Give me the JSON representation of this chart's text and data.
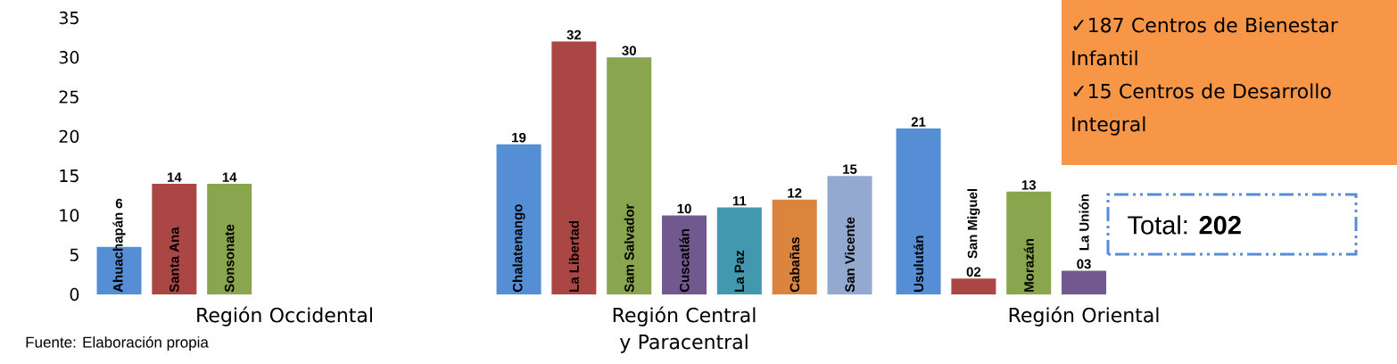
{
  "chart_data": {
    "type": "bar",
    "categories": [
      "Región Occidental",
      "Región Central y Paracentral",
      "Región Oriental"
    ],
    "series": [
      {
        "color": "#558ed5",
        "values": [
          6,
          19,
          21
        ],
        "value_labels": [
          "6",
          "19",
          "21"
        ]
      },
      {
        "color": "#aa4644",
        "values": [
          14,
          32,
          2
        ],
        "value_labels": [
          "14",
          "32",
          "02"
        ]
      },
      {
        "color": "#89a54e",
        "values": [
          14,
          30,
          13
        ],
        "value_labels": [
          "14",
          "30",
          "13"
        ]
      },
      {
        "color": "#71588f",
        "values": [
          null,
          10,
          3
        ],
        "value_labels": [
          null,
          "10",
          "03"
        ]
      },
      {
        "color": "#4198af",
        "values": [
          null,
          11,
          null
        ],
        "value_labels": [
          null,
          "11",
          null
        ]
      },
      {
        "color": "#db843d",
        "values": [
          null,
          12,
          null
        ],
        "value_labels": [
          null,
          "12",
          null
        ]
      },
      {
        "color": "#93a9cf",
        "values": [
          null,
          15,
          null
        ],
        "value_labels": [
          null,
          "15",
          null
        ]
      }
    ],
    "ylim": [
      0,
      35
    ],
    "yticks": [
      0,
      5,
      10,
      15,
      20,
      25,
      30,
      35
    ],
    "annotations": [
      "Ahuachapán",
      "Santa Ana",
      "Sonsonate",
      "Chalatenango",
      "La Libertad",
      "Sam Salvador",
      "Cuscatlán",
      "La Paz",
      "Cabañas",
      "San Vicente",
      "Usulután",
      "San Miguel",
      "Morazán",
      "La Unión",
      "✓187 Centros de Bienestar Infantil",
      "✓15 Centros de Desarrollo Integral",
      "Total: **202**",
      "Fuente: Elaboración propia"
    ]
  }
}
